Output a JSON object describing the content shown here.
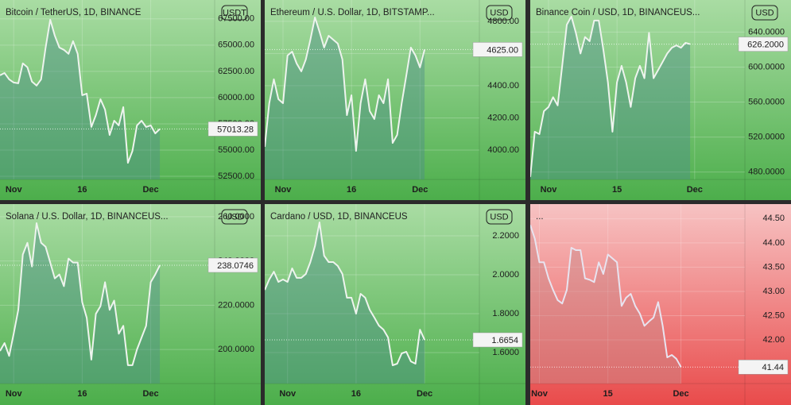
{
  "chart_data": [
    {
      "type": "line",
      "title": "Bitcoin / TetherUS, 1D, BINANCE",
      "unit": "USDT",
      "theme": "green",
      "color": "#eef4ee",
      "fill": "#4d8f8a",
      "last": {
        "value": 57013.28,
        "label": "57013.28"
      },
      "categories": [
        null,
        null,
        null,
        "Nov",
        null,
        null,
        null,
        null,
        null,
        null,
        null,
        null,
        null,
        null,
        null,
        null,
        null,
        null,
        "16",
        null,
        null,
        null,
        null,
        null,
        null,
        null,
        null,
        null,
        null,
        null,
        null,
        null,
        null,
        "Dec",
        null,
        null,
        null,
        null,
        null,
        null,
        null,
        null,
        null,
        null,
        null,
        null,
        null
      ],
      "values": [
        62120,
        62350,
        61740,
        61440,
        61360,
        63260,
        62880,
        61520,
        61140,
        61740,
        64770,
        67420,
        65910,
        64770,
        64550,
        64170,
        65380,
        64170,
        60230,
        60380,
        57200,
        58330,
        59850,
        58860,
        56440,
        57800,
        57350,
        59090,
        53790,
        54920,
        57350,
        57800,
        57200,
        57350,
        56590,
        57013.28,
        null,
        null,
        null,
        null,
        null,
        null,
        null,
        null,
        null,
        null,
        null
      ],
      "ylim": [
        52200,
        69300
      ],
      "yticks": [
        {
          "value": 52500,
          "label": "52500.00"
        },
        {
          "value": 55000,
          "label": "55000.00"
        },
        {
          "value": 57500,
          "label": "57500.00"
        },
        {
          "value": 60000,
          "label": "60000.00"
        },
        {
          "value": 62500,
          "label": "62500.00"
        },
        {
          "value": 65000,
          "label": "65000.00"
        },
        {
          "value": 67500,
          "label": "67500.00"
        }
      ]
    },
    {
      "type": "line",
      "title": "Ethereum / U.S. Dollar, 1D, BITSTAMP...",
      "unit": "USD",
      "theme": "green",
      "color": "#eef4ee",
      "fill": "#4d8f8a",
      "last": {
        "value": 4625,
        "label": "4625.00"
      },
      "categories": [
        null,
        null,
        null,
        null,
        "Nov",
        null,
        null,
        null,
        null,
        null,
        null,
        null,
        null,
        null,
        null,
        null,
        null,
        null,
        null,
        "16",
        null,
        null,
        null,
        null,
        null,
        null,
        null,
        null,
        null,
        null,
        null,
        null,
        null,
        null,
        "Dec",
        null,
        null,
        null,
        null,
        null,
        null,
        null,
        null,
        null,
        null,
        null,
        null
      ],
      "values": [
        4020,
        4291,
        4440,
        4316,
        4291,
        4588,
        4612,
        4538,
        4489,
        4563,
        4686,
        4825,
        4736,
        4637,
        4711,
        4686,
        4662,
        4563,
        4217,
        4341,
        3995,
        4291,
        4440,
        4242,
        4193,
        4341,
        4291,
        4440,
        4044,
        4094,
        4291,
        4464,
        4637,
        4588,
        4514,
        4625,
        null,
        null,
        null,
        null,
        null,
        null,
        null,
        null,
        null,
        null,
        null
      ],
      "ylim": [
        3817,
        4933
      ],
      "yticks": [
        {
          "value": 4000,
          "label": "4000.00"
        },
        {
          "value": 4200,
          "label": "4200.00"
        },
        {
          "value": 4400,
          "label": "4400.00"
        },
        {
          "value": 4600,
          "label": "4600.00"
        },
        {
          "value": 4800,
          "label": "4800.00"
        }
      ]
    },
    {
      "type": "line",
      "title": "Binance Coin / USD, 1D, BINANCEUS...",
      "unit": "USD",
      "theme": "green",
      "color": "#eef4ee",
      "fill": "#4d8f8a",
      "last": {
        "value": 626.2,
        "label": "626.2000"
      },
      "categories": [
        null,
        null,
        null,
        null,
        "Nov",
        null,
        null,
        null,
        null,
        null,
        null,
        null,
        null,
        null,
        null,
        null,
        null,
        null,
        null,
        "15",
        null,
        null,
        null,
        null,
        null,
        null,
        null,
        null,
        null,
        null,
        null,
        null,
        null,
        null,
        null,
        null,
        "Dec",
        null,
        null,
        null,
        null,
        null,
        null,
        null,
        null,
        null,
        null
      ],
      "values": [
        474.4,
        526.1,
        523.3,
        549.6,
        554.4,
        565.6,
        556.2,
        601.4,
        648.5,
        657.9,
        639.1,
        615.5,
        634.4,
        629.6,
        653.2,
        653.2,
        620.2,
        582.6,
        526.1,
        582.6,
        601.4,
        582.6,
        554.4,
        587.3,
        601.4,
        587.3,
        639.1,
        587.3,
        596.7,
        606.1,
        615.5,
        622.1,
        624.9,
        622.1,
        627.8,
        626.2,
        null,
        null,
        null,
        null,
        null,
        null,
        null,
        null,
        null,
        null,
        null
      ],
      "ylim": [
        471.5,
        676.7
      ],
      "yticks": [
        {
          "value": 480,
          "label": "480.0000"
        },
        {
          "value": 520,
          "label": "520.0000"
        },
        {
          "value": 560,
          "label": "560.0000"
        },
        {
          "value": 600,
          "label": "600.0000"
        },
        {
          "value": 640,
          "label": "640.0000"
        }
      ]
    },
    {
      "type": "line",
      "title": "Solana / U.S. Dollar, 1D, BINANCEUS...",
      "unit": "USD",
      "theme": "green",
      "color": "#eef4ee",
      "fill": "#4d8f8a",
      "last": {
        "value": 238.0746,
        "label": "238.0746"
      },
      "categories": [
        null,
        null,
        null,
        "Nov",
        null,
        null,
        null,
        null,
        null,
        null,
        null,
        null,
        null,
        null,
        null,
        null,
        null,
        null,
        "16",
        null,
        null,
        null,
        null,
        null,
        null,
        null,
        null,
        null,
        null,
        null,
        null,
        null,
        null,
        "Dec",
        null,
        null,
        null,
        null,
        null,
        null,
        null,
        null,
        null,
        null,
        null,
        null,
        null
      ],
      "values": [
        199.3,
        202.9,
        197.1,
        207.1,
        217.9,
        242.9,
        248.2,
        237.5,
        257.1,
        248.2,
        246.4,
        239.3,
        232.1,
        233.9,
        228.6,
        241.1,
        239.3,
        239.3,
        221.4,
        214.3,
        195.4,
        216.1,
        219.6,
        230.4,
        217.9,
        222.1,
        207.1,
        210.7,
        192.9,
        192.9,
        200,
        205.4,
        210.7,
        230.4,
        233.9,
        238.0746,
        null,
        null,
        null,
        null,
        null,
        null,
        null,
        null,
        null,
        null,
        null
      ],
      "ylim": [
        184.6,
        265.7
      ],
      "yticks": [
        {
          "value": 200,
          "label": "200.0000"
        },
        {
          "value": 220,
          "label": "220.0000"
        },
        {
          "value": 240,
          "label": "240.0000"
        },
        {
          "value": 260,
          "label": "260.0000"
        }
      ]
    },
    {
      "type": "line",
      "title": "Cardano / USD, 1D, BINANCEUS",
      "unit": "USD",
      "theme": "green",
      "color": "#eef4ee",
      "fill": "#4d8f8a",
      "last": {
        "value": 1.6654,
        "label": "1.6654"
      },
      "categories": [
        null,
        null,
        null,
        null,
        null,
        "Nov",
        null,
        null,
        null,
        null,
        null,
        null,
        null,
        null,
        null,
        null,
        null,
        null,
        null,
        null,
        "16",
        null,
        null,
        null,
        null,
        null,
        null,
        null,
        null,
        null,
        null,
        null,
        null,
        null,
        null,
        "Dec",
        null,
        null,
        null,
        null,
        null,
        null,
        null,
        null,
        null,
        null,
        null
      ],
      "values": [
        1.922,
        1.976,
        2.016,
        1.963,
        1.976,
        1.963,
        2.033,
        1.984,
        1.984,
        2.004,
        2.065,
        2.147,
        2.269,
        2.098,
        2.065,
        2.065,
        2.045,
        2.004,
        1.882,
        1.882,
        1.8,
        1.902,
        1.882,
        1.82,
        1.78,
        1.739,
        1.718,
        1.678,
        1.535,
        1.543,
        1.596,
        1.604,
        1.555,
        1.543,
        1.718,
        1.6654,
        null,
        null,
        null,
        null,
        null,
        null,
        null,
        null,
        null,
        null,
        null
      ],
      "ylim": [
        1.441,
        2.363
      ],
      "yticks": [
        {
          "value": 1.6,
          "label": "1.6000"
        },
        {
          "value": 1.8,
          "label": "1.8000"
        },
        {
          "value": 2,
          "label": "2.0000"
        },
        {
          "value": 2.2,
          "label": "2.2000"
        }
      ]
    },
    {
      "type": "line",
      "title": "...",
      "theme": "red",
      "color": "#e8e4f0",
      "fill": "#c98a8a",
      "last": {
        "value": 41.44,
        "label": "41.44"
      },
      "categories": [
        null,
        null,
        "Nov",
        null,
        null,
        null,
        null,
        null,
        null,
        null,
        null,
        null,
        null,
        null,
        null,
        null,
        null,
        "15",
        null,
        null,
        null,
        null,
        null,
        null,
        null,
        null,
        null,
        null,
        null,
        null,
        null,
        null,
        null,
        "Dec",
        null,
        null,
        null,
        null,
        null,
        null,
        null,
        null,
        null,
        null,
        null,
        null,
        null
      ],
      "values": [
        44.37,
        44.09,
        43.6,
        43.6,
        43.27,
        43.03,
        42.82,
        42.75,
        43.03,
        43.9,
        43.85,
        43.85,
        43.27,
        43.24,
        43.19,
        43.6,
        43.36,
        43.76,
        43.68,
        43.6,
        42.7,
        42.87,
        42.95,
        42.7,
        42.54,
        42.29,
        42.38,
        42.46,
        42.78,
        42.29,
        41.64,
        41.69,
        41.61,
        41.44,
        null,
        null,
        null,
        null,
        null,
        null,
        null,
        null,
        null,
        null,
        null,
        null,
        null
      ],
      "ylim": [
        41.1,
        44.8
      ],
      "yticks": [
        {
          "value": 42,
          "label": "42.00"
        },
        {
          "value": 42.5,
          "label": "42.50"
        },
        {
          "value": 43,
          "label": "43.00"
        },
        {
          "value": 43.5,
          "label": "43.50"
        },
        {
          "value": 44,
          "label": "44.00"
        },
        {
          "value": 44.5,
          "label": "44.50"
        }
      ]
    }
  ]
}
